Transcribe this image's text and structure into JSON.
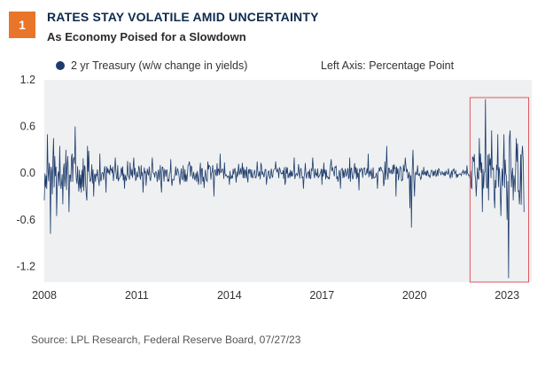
{
  "header": {
    "badge": "1",
    "title": "RATES STAY VOLATILE AMID UNCERTAINTY",
    "subtitle": "As Economy Poised for a Slowdown"
  },
  "footer": {
    "source": "Source: LPL Research, Federal Reserve Board,  07/27/23"
  },
  "colors": {
    "badge": "#e8752a",
    "series": "#1e3c6b",
    "highlight": "#e0575c",
    "plot_bg": "#eef0f2"
  },
  "chart_data": {
    "type": "line",
    "title": "RATES STAY VOLATILE AMID UNCERTAINTY",
    "subtitle": "As Economy Poised for a Slowdown",
    "xlabel": "",
    "ylabel": "",
    "axis_note": "Left Axis: Percentage Point",
    "legend": [
      "2 yr Treasury (w/w change in yields)"
    ],
    "x_ticks": [
      "2008",
      "2011",
      "2014",
      "2017",
      "2020",
      "2023"
    ],
    "x_tick_values": [
      2008,
      2011,
      2014,
      2017,
      2020,
      2023
    ],
    "y_ticks": [
      "1.2",
      "0.6",
      "0.0",
      "-0.6",
      "-1.2"
    ],
    "y_tick_values": [
      1.2,
      0.6,
      0.0,
      -0.6,
      -1.2
    ],
    "xlim": [
      2008,
      2023.8
    ],
    "ylim": [
      -1.4,
      1.2
    ],
    "highlight_range": [
      2021.8,
      2023.7
    ],
    "series": [
      {
        "name": "2 yr Treasury (w/w change in yields)",
        "x": [
          2008.0,
          2008.1,
          2008.2,
          2008.3,
          2008.4,
          2008.5,
          2008.6,
          2008.7,
          2008.8,
          2008.9,
          2009.0,
          2009.2,
          2009.4,
          2009.6,
          2009.8,
          2010.0,
          2010.3,
          2010.6,
          2010.9,
          2011.2,
          2011.5,
          2011.8,
          2012.1,
          2012.4,
          2012.7,
          2013.0,
          2013.3,
          2013.5,
          2013.7,
          2014.0,
          2014.3,
          2014.6,
          2014.9,
          2015.2,
          2015.5,
          2015.8,
          2016.1,
          2016.4,
          2016.7,
          2017.0,
          2017.3,
          2017.6,
          2017.9,
          2018.2,
          2018.5,
          2018.8,
          2019.1,
          2019.4,
          2019.7,
          2019.85,
          2019.9,
          2019.95,
          2020.0,
          2020.1,
          2020.2,
          2020.3,
          2020.5,
          2020.8,
          2021.1,
          2021.4,
          2021.7,
          2021.9,
          2022.0,
          2022.1,
          2022.2,
          2022.3,
          2022.4,
          2022.5,
          2022.6,
          2022.7,
          2022.8,
          2022.9,
          2023.0,
          2023.05,
          2023.1,
          2023.2,
          2023.3,
          2023.4,
          2023.5,
          2023.55
        ],
        "values": [
          -0.35,
          0.5,
          -0.78,
          0.45,
          -0.55,
          0.35,
          -0.4,
          0.3,
          -0.5,
          0.25,
          0.6,
          -0.25,
          0.35,
          -0.3,
          0.25,
          -0.25,
          0.2,
          -0.2,
          0.2,
          -0.25,
          0.2,
          -0.25,
          0.18,
          -0.15,
          0.15,
          -0.15,
          0.15,
          -0.3,
          0.25,
          -0.15,
          0.12,
          -0.12,
          0.15,
          -0.15,
          0.15,
          -0.15,
          0.2,
          -0.2,
          0.2,
          -0.15,
          0.18,
          -0.2,
          0.2,
          -0.22,
          0.25,
          -0.2,
          0.35,
          -0.3,
          0.2,
          -0.45,
          -0.7,
          0.3,
          -0.3,
          0.1,
          -0.08,
          0.08,
          -0.06,
          0.05,
          0.06,
          -0.05,
          0.1,
          0.2,
          -0.3,
          0.45,
          -0.5,
          0.95,
          -0.35,
          0.55,
          -0.45,
          0.5,
          -0.55,
          0.5,
          -0.6,
          -1.35,
          0.55,
          -0.35,
          0.45,
          -0.4,
          0.35,
          -0.5
        ]
      }
    ]
  }
}
